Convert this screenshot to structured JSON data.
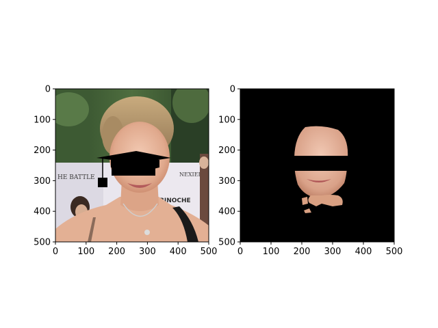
{
  "figure": {
    "background": "#ffffff",
    "axis_color": "#000000"
  },
  "panels": [
    {
      "name": "original-image-with-overlay",
      "content": "photo of a woman's face with black graduation cap overlay and black eye/nose mask",
      "x_ticks": [
        "0",
        "100",
        "200",
        "300",
        "400",
        "500"
      ],
      "y_ticks": [
        "0",
        "100",
        "200",
        "300",
        "400",
        "500"
      ],
      "xlim": [
        0,
        500
      ],
      "ylim": [
        500,
        0
      ],
      "background_text": {
        "left": "HE BATTLE",
        "right_top": "NEXIER",
        "right_mid": "BINOCHE"
      }
    },
    {
      "name": "segmented-face-mask",
      "content": "black background with only the segmented face skin region visible, black mask over eyes/nose",
      "x_ticks": [
        "0",
        "100",
        "200",
        "300",
        "400",
        "500"
      ],
      "y_ticks": [
        "0",
        "100",
        "200",
        "300",
        "400",
        "500"
      ],
      "xlim": [
        0,
        500
      ],
      "ylim": [
        500,
        0
      ]
    }
  ]
}
